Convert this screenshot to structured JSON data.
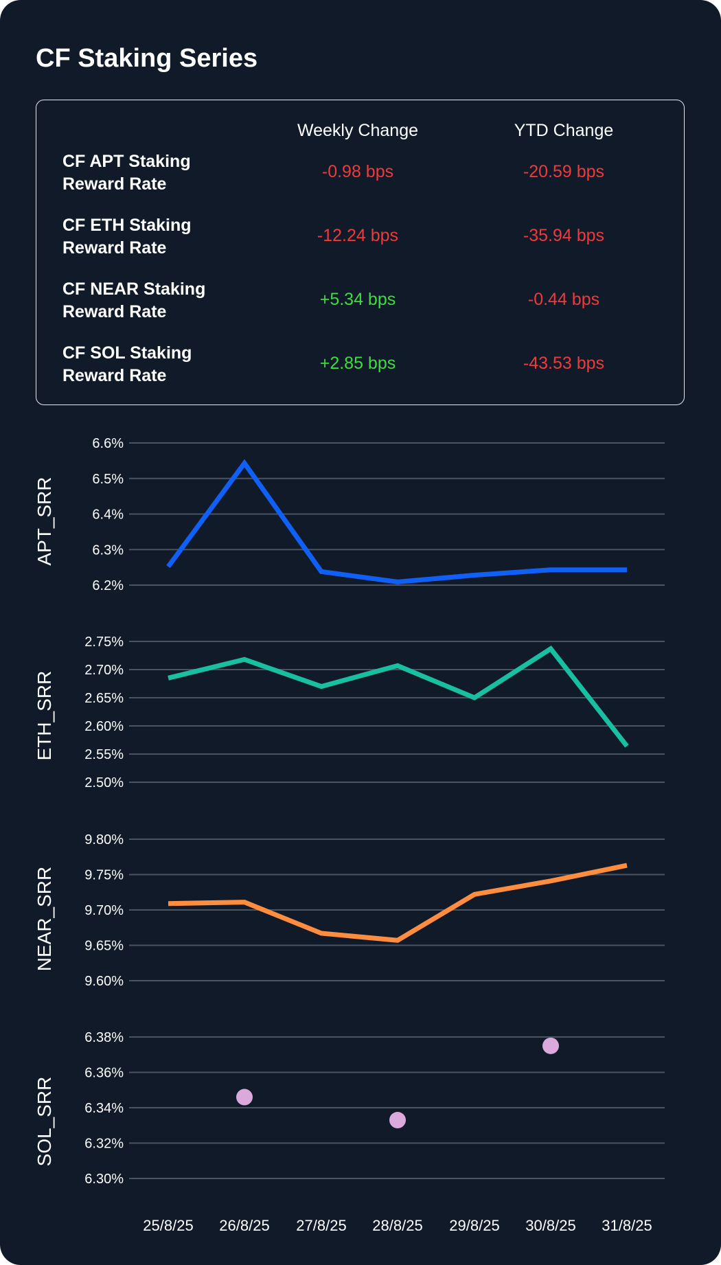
{
  "title": "CF Staking Series",
  "table": {
    "headers": [
      "Weekly Change",
      "YTD Change"
    ],
    "rows": [
      {
        "label_line1": "CF APT Staking",
        "label_line2": "Reward Rate",
        "weekly": "-0.98 bps",
        "ytd": "-20.59 bps",
        "weekly_sign": "neg",
        "ytd_sign": "neg"
      },
      {
        "label_line1": "CF ETH Staking",
        "label_line2": "Reward Rate",
        "weekly": "-12.24 bps",
        "ytd": "-35.94 bps",
        "weekly_sign": "neg",
        "ytd_sign": "neg"
      },
      {
        "label_line1": "CF NEAR Staking",
        "label_line2": "Reward Rate",
        "weekly": "+5.34 bps",
        "ytd": "-0.44 bps",
        "weekly_sign": "pos",
        "ytd_sign": "neg"
      },
      {
        "label_line1": "CF SOL Staking",
        "label_line2": "Reward Rate",
        "weekly": "+2.85 bps",
        "ytd": "-43.53 bps",
        "weekly_sign": "pos",
        "ytd_sign": "neg"
      }
    ]
  },
  "colors": {
    "background": "#111a29",
    "grid": "#4a5360",
    "negative": "#ee3a3a",
    "positive": "#3fdc3f"
  },
  "chart_data": {
    "type": "line",
    "x": [
      "25/8/25",
      "26/8/25",
      "27/8/25",
      "28/8/25",
      "29/8/25",
      "30/8/25",
      "31/8/25"
    ],
    "panels": [
      {
        "ylabel": "APT_SRR",
        "mark": "line",
        "color": "#1160f5",
        "ticks": [
          6.6,
          6.5,
          6.4,
          6.3,
          6.2
        ],
        "tick_labels": [
          "6.6%",
          "6.5%",
          "6.4%",
          "6.3%",
          "6.2%"
        ],
        "ylim": [
          6.2,
          6.6
        ],
        "values": [
          6.252,
          6.543,
          6.238,
          6.209,
          6.228,
          6.243,
          6.243
        ]
      },
      {
        "ylabel": "ETH_SRR",
        "mark": "line",
        "color": "#18bfa1",
        "ticks": [
          2.75,
          2.7,
          2.65,
          2.6,
          2.55,
          2.5
        ],
        "tick_labels": [
          "2.75%",
          "2.70%",
          "2.65%",
          "2.60%",
          "2.55%",
          "2.50%"
        ],
        "ylim": [
          2.5,
          2.75
        ],
        "values": [
          2.685,
          2.718,
          2.67,
          2.707,
          2.65,
          2.737,
          2.564
        ]
      },
      {
        "ylabel": "NEAR_SRR",
        "mark": "line",
        "color": "#ff8d40",
        "ticks": [
          9.8,
          9.75,
          9.7,
          9.65,
          9.6
        ],
        "tick_labels": [
          "9.80%",
          "9.75%",
          "9.70%",
          "9.65%",
          "9.60%"
        ],
        "ylim": [
          9.6,
          9.8
        ],
        "values": [
          9.709,
          9.711,
          9.667,
          9.657,
          9.722,
          9.741,
          9.763
        ]
      },
      {
        "ylabel": "SOL_SRR",
        "mark": "scatter",
        "color": "#dca9dd",
        "ticks": [
          6.38,
          6.36,
          6.34,
          6.32,
          6.3
        ],
        "tick_labels": [
          "6.38%",
          "6.36%",
          "6.34%",
          "6.32%",
          "6.30%"
        ],
        "ylim": [
          6.3,
          6.38
        ],
        "values": [
          null,
          6.346,
          null,
          6.333,
          null,
          6.375,
          null
        ]
      }
    ]
  }
}
